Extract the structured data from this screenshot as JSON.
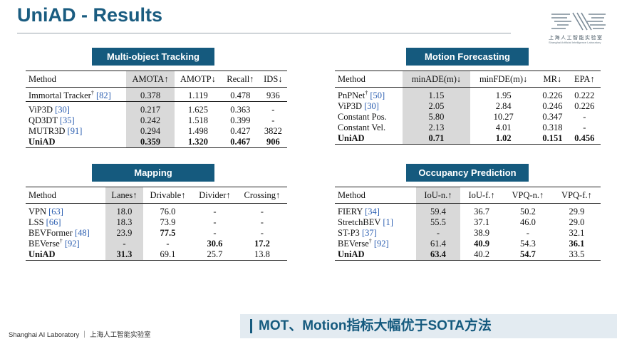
{
  "page": {
    "title": "UniAD - Results",
    "logo_cn": "上海人工智能实验室",
    "logo_en": "Shanghai Artificial Intelligence Laboratory",
    "footer": "Shanghai AI Laboratory ｜ 上海人工智能实验室",
    "banner": "MOT、Motion指标大幅优于SOTA方法"
  },
  "mot": {
    "title": "Multi-object Tracking",
    "headers": [
      "Method",
      "AMOTA↑",
      "AMOTP↓",
      "Recall↑",
      "IDS↓"
    ],
    "rows": [
      {
        "name": "Immortal Tracker",
        "dag": "†",
        "ref": "[82]",
        "v": [
          "0.378",
          "1.119",
          "0.478",
          "936"
        ]
      },
      {
        "name": "ViP3D",
        "dag": "",
        "ref": "[30]",
        "v": [
          "0.217",
          "1.625",
          "0.363",
          "-"
        ]
      },
      {
        "name": "QD3DT",
        "dag": "",
        "ref": "[35]",
        "v": [
          "0.242",
          "1.518",
          "0.399",
          "-"
        ]
      },
      {
        "name": "MUTR3D",
        "dag": "",
        "ref": "[91]",
        "v": [
          "0.294",
          "1.498",
          "0.427",
          "3822"
        ]
      },
      {
        "name": "UniAD",
        "dag": "",
        "ref": "",
        "v": [
          "0.359",
          "1.320",
          "0.467",
          "906"
        ]
      }
    ]
  },
  "motion": {
    "title": "Motion Forecasting",
    "headers": [
      "Method",
      "minADE(m)↓",
      "minFDE(m)↓",
      "MR↓",
      "EPA↑"
    ],
    "rows": [
      {
        "name": "PnPNet",
        "dag": "†",
        "ref": "[50]",
        "v": [
          "1.15",
          "1.95",
          "0.226",
          "0.222"
        ]
      },
      {
        "name": "ViP3D",
        "dag": "",
        "ref": "[30]",
        "v": [
          "2.05",
          "2.84",
          "0.246",
          "0.226"
        ]
      },
      {
        "name": "Constant Pos.",
        "dag": "",
        "ref": "",
        "v": [
          "5.80",
          "10.27",
          "0.347",
          "-"
        ]
      },
      {
        "name": "Constant Vel.",
        "dag": "",
        "ref": "",
        "v": [
          "2.13",
          "4.01",
          "0.318",
          "-"
        ]
      },
      {
        "name": "UniAD",
        "dag": "",
        "ref": "",
        "v": [
          "0.71",
          "1.02",
          "0.151",
          "0.456"
        ]
      }
    ]
  },
  "mapping": {
    "title": "Mapping",
    "headers": [
      "Method",
      "Lanes↑",
      "Drivable↑",
      "Divider↑",
      "Crossing↑"
    ],
    "rows": [
      {
        "name": "VPN",
        "dag": "",
        "ref": "[63]",
        "v": [
          "18.0",
          "76.0",
          "-",
          "-"
        ]
      },
      {
        "name": "LSS",
        "dag": "",
        "ref": "[66]",
        "v": [
          "18.3",
          "73.9",
          "-",
          "-"
        ]
      },
      {
        "name": "BEVFormer",
        "dag": "",
        "ref": "[48]",
        "v": [
          "23.9",
          "77.5",
          "-",
          "-"
        ]
      },
      {
        "name": "BEVerse",
        "dag": "†",
        "ref": "[92]",
        "v": [
          "-",
          "-",
          "30.6",
          "17.2"
        ]
      },
      {
        "name": "UniAD",
        "dag": "",
        "ref": "",
        "v": [
          "31.3",
          "69.1",
          "25.7",
          "13.8"
        ]
      }
    ]
  },
  "occ": {
    "title": "Occupancy Prediction",
    "headers": [
      "Method",
      "IoU-n.↑",
      "IoU-f.↑",
      "VPQ-n.↑",
      "VPQ-f.↑"
    ],
    "rows": [
      {
        "name": "FIERY",
        "dag": "",
        "ref": "[34]",
        "v": [
          "59.4",
          "36.7",
          "50.2",
          "29.9"
        ]
      },
      {
        "name": "StretchBEV",
        "dag": "",
        "ref": "[1]",
        "v": [
          "55.5",
          "37.1",
          "46.0",
          "29.0"
        ]
      },
      {
        "name": "ST-P3",
        "dag": "",
        "ref": "[37]",
        "v": [
          "-",
          "38.9",
          "-",
          "32.1"
        ]
      },
      {
        "name": "BEVerse",
        "dag": "†",
        "ref": "[92]",
        "v": [
          "61.4",
          "40.9",
          "54.3",
          "36.1"
        ]
      },
      {
        "name": "UniAD",
        "dag": "",
        "ref": "",
        "v": [
          "63.4",
          "40.2",
          "54.7",
          "33.5"
        ]
      }
    ]
  }
}
